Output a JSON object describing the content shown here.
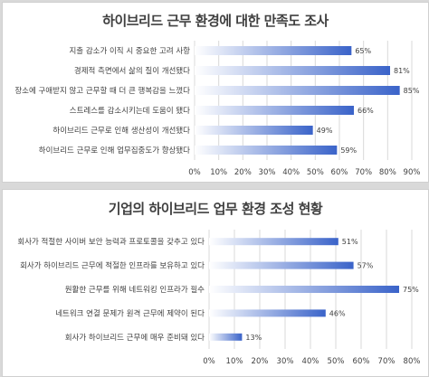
{
  "chart_data": [
    {
      "type": "bar",
      "orientation": "horizontal",
      "title": "하이브리드 근무 환경에 대한 만족도 조사",
      "categories": [
        "지출 감소가 이직 시 중요한 고려 사항",
        "경제적 측면에서 삶의 질이 개선됐다",
        "장소에 구애받지 않고 근무할 때 더 큰 행복감을 느꼈다",
        "스트레스를 감소시키는데 도움이 됐다",
        "하이브리드 근무로 인해 생산성이 개선됐다",
        "하이브리드 근무로 인해 업무집중도가 향상됐다"
      ],
      "values": [
        65,
        81,
        85,
        66,
        49,
        59
      ],
      "value_labels": [
        "65%",
        "81%",
        "85%",
        "66%",
        "49%",
        "59%"
      ],
      "xlim": [
        0,
        90
      ],
      "x_ticks": [
        "0%",
        "10%",
        "20%",
        "30%",
        "40%",
        "50%",
        "60%",
        "70%",
        "80%",
        "90%"
      ],
      "grid": true,
      "bar_color_start": "#ffffff",
      "bar_color_end": "#3a63c9"
    },
    {
      "type": "bar",
      "orientation": "horizontal",
      "title": "기업의 하이브리드 업무 환경 조성 현황",
      "categories": [
        "회사가 적절한 사이버 보안 능력과 프로토콜을 갖추고 있다",
        "회사가 하이브리드 근무에 적절한 인프라를 보유하고 있다",
        "원활한 근무를 위해 네트워킹 인프라가 필수",
        "네트워크 연결 문제가 원격 근무에 제약이 된다",
        "회사가 하이브리드 근무에 매우 준비돼 있다"
      ],
      "values": [
        51,
        57,
        75,
        46,
        13
      ],
      "value_labels": [
        "51%",
        "57%",
        "75%",
        "46%",
        "13%"
      ],
      "xlim": [
        0,
        80
      ],
      "x_ticks": [
        "0%",
        "10%",
        "20%",
        "30%",
        "40%",
        "50%",
        "60%",
        "70%",
        "80%"
      ],
      "grid": true,
      "bar_color_start": "#ffffff",
      "bar_color_end": "#3a63c9"
    }
  ]
}
